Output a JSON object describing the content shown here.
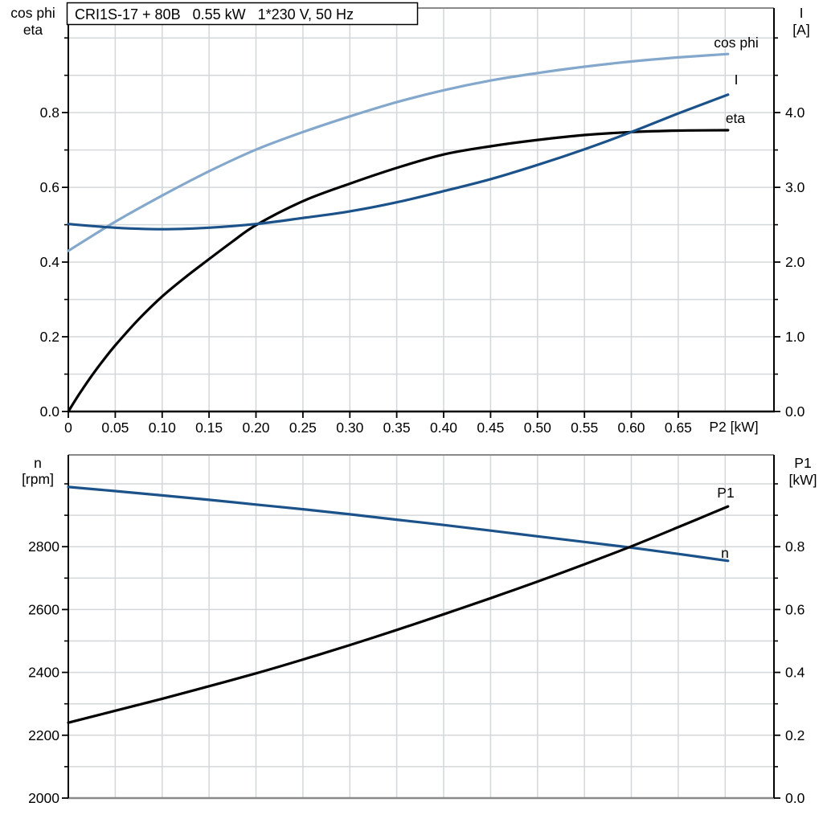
{
  "title": "CRI1S-17 + 80B   0.55 kW   1*230 V, 50 Hz",
  "colors": {
    "dark_blue": "#1c528a",
    "light_blue": "#84a8cc",
    "black": "#000000",
    "grid": "#d4d7d9",
    "border": "#8a8a8a",
    "background": "#ffffff"
  },
  "chart_data": [
    {
      "type": "line",
      "title": "CRI1S-17 + 80B  0.55 kW  1*230 V, 50 Hz",
      "legend": "curve labels inline, no legend box",
      "x_axis": {
        "label": "P2 [kW]",
        "min": 0,
        "max": 0.752,
        "major_ticks": [
          0,
          0.05,
          0.1,
          0.15,
          0.2,
          0.25,
          0.3,
          0.35,
          0.4,
          0.45,
          0.5,
          0.55,
          0.6,
          0.65
        ],
        "tick_labels": [
          "0",
          "0.05",
          "0.10",
          "0.15",
          "0.20",
          "0.25",
          "0.30",
          "0.35",
          "0.40",
          "0.45",
          "0.50",
          "0.55",
          "0.60",
          "0.65"
        ],
        "grid": [
          0.05,
          0.1,
          0.15,
          0.2,
          0.25,
          0.3,
          0.35,
          0.4,
          0.45,
          0.5,
          0.55,
          0.6,
          0.65,
          0.7
        ]
      },
      "y_left": {
        "title_lines": [
          "cos phi",
          "eta"
        ],
        "min": 0,
        "max": 1.08,
        "major_ticks": [
          0,
          0.2,
          0.4,
          0.6,
          0.8
        ],
        "tick_labels": [
          "0.0",
          "0.2",
          "0.4",
          "0.6",
          "0.8"
        ],
        "minor_ticks": [
          0.1,
          0.3,
          0.5,
          0.7,
          0.9,
          1.0
        ],
        "grid": [
          0.1,
          0.2,
          0.3,
          0.4,
          0.5,
          0.6,
          0.7,
          0.8,
          0.9,
          1.0
        ]
      },
      "y_right": {
        "title_lines": [
          "I",
          "[A]"
        ],
        "min": 0,
        "max": 5.4,
        "major_ticks": [
          0,
          1,
          2,
          3,
          4
        ],
        "tick_labels": [
          "0.0",
          "1.0",
          "2.0",
          "3.0",
          "4.0"
        ],
        "minor_ticks": [
          0.5,
          1.5,
          2.5,
          3.5,
          4.5,
          5.0
        ]
      },
      "series": [
        {
          "name": "cos phi",
          "axis": "left",
          "color": "#84a8cc",
          "x": [
            0,
            0.05,
            0.1,
            0.15,
            0.2,
            0.25,
            0.3,
            0.35,
            0.4,
            0.45,
            0.5,
            0.55,
            0.6,
            0.65,
            0.703
          ],
          "y": [
            0.43,
            0.508,
            0.578,
            0.643,
            0.701,
            0.748,
            0.79,
            0.828,
            0.86,
            0.886,
            0.906,
            0.923,
            0.937,
            0.948,
            0.957
          ]
        },
        {
          "name": "eta",
          "axis": "left",
          "color": "#000000",
          "x": [
            0,
            0.0125,
            0.025,
            0.0375,
            0.05,
            0.075,
            0.1,
            0.125,
            0.15,
            0.175,
            0.2,
            0.25,
            0.3,
            0.35,
            0.4,
            0.45,
            0.5,
            0.55,
            0.6,
            0.65,
            0.703
          ],
          "y": [
            0,
            0.05,
            0.096,
            0.138,
            0.177,
            0.247,
            0.308,
            0.36,
            0.408,
            0.455,
            0.499,
            0.563,
            0.61,
            0.652,
            0.688,
            0.71,
            0.727,
            0.74,
            0.748,
            0.752,
            0.753
          ]
        },
        {
          "name": "I",
          "axis": "right",
          "color": "#1c528a",
          "x": [
            0,
            0.05,
            0.1,
            0.15,
            0.2,
            0.25,
            0.3,
            0.35,
            0.4,
            0.45,
            0.5,
            0.55,
            0.6,
            0.65,
            0.703
          ],
          "y": [
            2.51,
            2.46,
            2.44,
            2.46,
            2.51,
            2.59,
            2.68,
            2.8,
            2.95,
            3.11,
            3.3,
            3.51,
            3.74,
            3.99,
            4.24
          ]
        }
      ]
    },
    {
      "type": "line",
      "title": "",
      "x_axis": {
        "label": "",
        "min": 0,
        "max": 0.752,
        "major_ticks": [],
        "tick_labels": [],
        "grid": [
          0.05,
          0.1,
          0.15,
          0.2,
          0.25,
          0.3,
          0.35,
          0.4,
          0.45,
          0.5,
          0.55,
          0.6,
          0.65,
          0.7
        ]
      },
      "y_left": {
        "title_lines": [
          "n",
          "[rpm]"
        ],
        "min": 2000,
        "max": 3092,
        "major_ticks": [
          2000,
          2200,
          2400,
          2600,
          2800
        ],
        "tick_labels": [
          "2000",
          "2200",
          "2400",
          "2600",
          "2800"
        ],
        "minor_ticks": [
          2100,
          2300,
          2500,
          2700,
          2900,
          3000
        ],
        "grid": [
          2100,
          2200,
          2300,
          2400,
          2500,
          2600,
          2700,
          2800,
          2900,
          3000
        ]
      },
      "y_right": {
        "title_lines": [
          "P1",
          "[kW]"
        ],
        "min": 0,
        "max": 1.092,
        "major_ticks": [
          0,
          0.2,
          0.4,
          0.6,
          0.8
        ],
        "tick_labels": [
          "0.0",
          "0.2",
          "0.4",
          "0.6",
          "0.8"
        ],
        "minor_ticks": [
          0.1,
          0.3,
          0.5,
          0.7,
          0.9,
          1.0
        ]
      },
      "series": [
        {
          "name": "n",
          "axis": "left",
          "color": "#1c528a",
          "x": [
            0,
            0.05,
            0.1,
            0.15,
            0.2,
            0.25,
            0.3,
            0.35,
            0.4,
            0.45,
            0.5,
            0.55,
            0.6,
            0.65,
            0.703
          ],
          "y": [
            2990,
            2977,
            2963,
            2949,
            2934,
            2919,
            2903,
            2886,
            2869,
            2851,
            2833,
            2815,
            2797,
            2777,
            2755
          ]
        },
        {
          "name": "P1",
          "axis": "right",
          "color": "#000000",
          "x": [
            0,
            0.05,
            0.1,
            0.15,
            0.2,
            0.25,
            0.3,
            0.35,
            0.4,
            0.45,
            0.5,
            0.55,
            0.6,
            0.65,
            0.703
          ],
          "y": [
            0.24,
            0.278,
            0.316,
            0.356,
            0.397,
            0.441,
            0.487,
            0.535,
            0.585,
            0.636,
            0.689,
            0.744,
            0.801,
            0.862,
            0.928
          ]
        }
      ]
    }
  ]
}
